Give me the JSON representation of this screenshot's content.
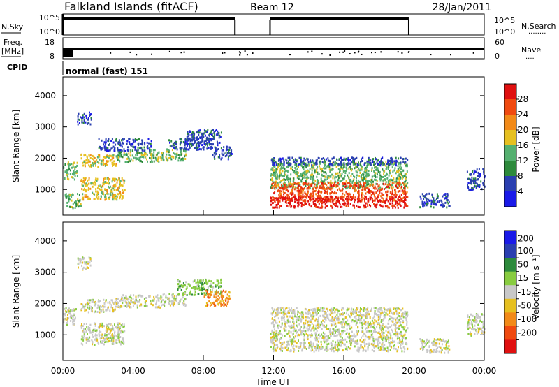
{
  "header": {
    "station": "Falkland Islands (fitACF)",
    "beam": "Beam 12",
    "date": "28/Jan/2011"
  },
  "left_labels": {
    "nsky": "N.Sky",
    "freq_top": "Freq.",
    "freq_unit": "[MHz]",
    "cpid": "CPID"
  },
  "right_labels": {
    "nsearch": "N.Search",
    "nsearch_dots": "........",
    "nave": "Nave",
    "nave_dots": "...."
  },
  "cpid_text": "normal (fast) 151",
  "chart_data": [
    {
      "type": "line",
      "panel": "noise",
      "left_axis_ticks": [
        "10^5",
        "10^0"
      ],
      "right_axis_ticks": [
        "10^5",
        "10^0"
      ],
      "series": [
        {
          "name": "N.Sky",
          "segments": [
            [
              0.0,
              9.8
            ],
            [
              11.8,
              19.7
            ]
          ]
        },
        {
          "name": "N.Search",
          "segments": [
            [
              0.0,
              9.8
            ],
            [
              11.8,
              19.7
            ]
          ]
        }
      ]
    },
    {
      "type": "line",
      "panel": "frequency",
      "left_axis_ticks": [
        "18",
        "8"
      ],
      "right_axis_ticks": [
        "60",
        "0"
      ],
      "frequency_mhz": 11,
      "series": [
        {
          "name": "Freq.",
          "segments": [
            [
              0.0,
              24.0
            ]
          ]
        },
        {
          "name": "Nave",
          "segments": [
            [
              0.0,
              24.0
            ]
          ]
        }
      ]
    },
    {
      "type": "heatmap",
      "panel": "power",
      "xlabel": "",
      "ylabel": "Slant Range [km]",
      "xlim": [
        0,
        24
      ],
      "ylim": [
        180,
        4600
      ],
      "y_ticks": [
        1000,
        2000,
        3000,
        4000
      ],
      "colorbar": {
        "label": "Power [dB]",
        "ticks": [
          4,
          8,
          12,
          16,
          20,
          24,
          28
        ],
        "range": [
          0,
          32
        ],
        "colors": [
          "#1a1ae8",
          "#2a3fb0",
          "#2d8a3c",
          "#55b070",
          "#e6c020",
          "#f28a18",
          "#f04a10",
          "#e01010"
        ]
      },
      "patches": [
        {
          "t": [
            0.0,
            0.8
          ],
          "r": [
            1350,
            1900
          ],
          "c": 3
        },
        {
          "t": [
            0.1,
            1.0
          ],
          "r": [
            400,
            900
          ],
          "c": 3
        },
        {
          "t": [
            0.8,
            1.6
          ],
          "r": [
            3100,
            3500
          ],
          "c": 1
        },
        {
          "t": [
            1.0,
            3.0
          ],
          "r": [
            1750,
            2150
          ],
          "c": 4
        },
        {
          "t": [
            3.0,
            5.5
          ],
          "r": [
            1900,
            2300
          ],
          "c": 3
        },
        {
          "t": [
            2.0,
            5.0
          ],
          "r": [
            2250,
            2650
          ],
          "c": 1
        },
        {
          "t": [
            1.0,
            3.5
          ],
          "r": [
            700,
            1400
          ],
          "c": 4
        },
        {
          "t": [
            5.5,
            7.0
          ],
          "r": [
            1950,
            2350
          ],
          "c": 3
        },
        {
          "t": [
            6.0,
            8.5
          ],
          "r": [
            2300,
            2700
          ],
          "c": 1
        },
        {
          "t": [
            7.0,
            9.0
          ],
          "r": [
            2450,
            2950
          ],
          "c": 1
        },
        {
          "t": [
            8.5,
            9.6
          ],
          "r": [
            2000,
            2400
          ],
          "c": 1
        },
        {
          "t": [
            11.8,
            19.6
          ],
          "r": [
            1050,
            1900
          ],
          "c": 3
        },
        {
          "t": [
            11.8,
            19.6
          ],
          "r": [
            650,
            1250
          ],
          "c": 6
        },
        {
          "t": [
            11.8,
            19.6
          ],
          "r": [
            450,
            800
          ],
          "c": 7
        },
        {
          "t": [
            11.8,
            19.6
          ],
          "r": [
            1800,
            2050
          ],
          "c": 1
        },
        {
          "t": [
            20.3,
            22.0
          ],
          "r": [
            450,
            900
          ],
          "c": 1
        },
        {
          "t": [
            23.0,
            24.0
          ],
          "r": [
            1000,
            1700
          ],
          "c": 1
        }
      ]
    },
    {
      "type": "heatmap",
      "panel": "velocity",
      "xlabel": "Time UT",
      "ylabel": "Slant Range [km]",
      "x_tick_labels": [
        "00:00",
        "04:00",
        "08:00",
        "12:00",
        "16:00",
        "20:00",
        "00:00"
      ],
      "xlim": [
        0,
        24
      ],
      "ylim": [
        180,
        4600
      ],
      "y_ticks": [
        1000,
        2000,
        3000,
        4000
      ],
      "colorbar": {
        "label": "Velocity [m s⁻¹]",
        "ticks": [
          "200",
          "100",
          "50",
          "15",
          "-15",
          "-50",
          "-100",
          "-200"
        ],
        "colors": [
          "#1a1ae8",
          "#2a3fb0",
          "#2d8a3c",
          "#88cc40",
          "#c8c8c8",
          "#e6c020",
          "#f28a18",
          "#f04a10",
          "#e01010"
        ]
      },
      "patches": [
        {
          "t": [
            0.0,
            0.8
          ],
          "r": [
            1350,
            1900
          ],
          "c": 4
        },
        {
          "t": [
            0.8,
            1.6
          ],
          "r": [
            3100,
            3500
          ],
          "c": 4
        },
        {
          "t": [
            1.0,
            3.0
          ],
          "r": [
            1750,
            2150
          ],
          "c": 4
        },
        {
          "t": [
            3.0,
            5.5
          ],
          "r": [
            1900,
            2300
          ],
          "c": 4
        },
        {
          "t": [
            1.0,
            3.5
          ],
          "r": [
            700,
            1400
          ],
          "c": 4
        },
        {
          "t": [
            5.5,
            7.0
          ],
          "r": [
            1950,
            2350
          ],
          "c": 4
        },
        {
          "t": [
            6.5,
            9.0
          ],
          "r": [
            2300,
            2800
          ],
          "c": 3
        },
        {
          "t": [
            8.0,
            9.5
          ],
          "r": [
            1950,
            2450
          ],
          "c": 6
        },
        {
          "t": [
            11.8,
            19.6
          ],
          "r": [
            500,
            1900
          ],
          "c": 4
        },
        {
          "t": [
            20.3,
            22.0
          ],
          "r": [
            450,
            900
          ],
          "c": 4
        },
        {
          "t": [
            23.0,
            24.0
          ],
          "r": [
            1000,
            1700
          ],
          "c": 4
        }
      ]
    }
  ]
}
